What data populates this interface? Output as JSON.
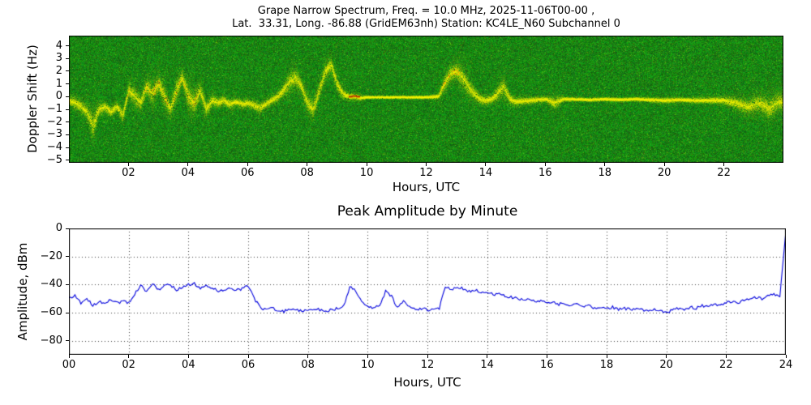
{
  "title": {
    "line1": "Grape Narrow Spectrum, Freq. = 10.0 MHz, 2025-11-06T00-00 ,",
    "line2": "Lat.  33.31, Long. -86.88 (GridEM63nh) Station: KC4LE_N60 Subchannel 0"
  },
  "colors": {
    "spectrogram_background": "#0c6e10",
    "trace_yellow": "#ffee00",
    "trace_orange": "#ff9000",
    "trace_red": "#d03010",
    "amplitude_line": "#0000dd"
  },
  "chart_data": [
    {
      "type": "heatmap",
      "title": "",
      "ylabel": "Doppler Shift (Hz)",
      "xlabel": "Hours, UTC",
      "xlim": [
        0,
        24
      ],
      "ylim": [
        -5.2,
        4.8
      ],
      "xticks": [
        2,
        4,
        6,
        8,
        10,
        12,
        14,
        16,
        18,
        20,
        22
      ],
      "xtick_labels": [
        "02",
        "04",
        "06",
        "08",
        "10",
        "12",
        "14",
        "16",
        "18",
        "20",
        "22"
      ],
      "yticks": [
        4,
        3,
        2,
        1,
        0,
        -1,
        -2,
        -3,
        -4,
        -5
      ],
      "ytick_labels": [
        "4",
        "3",
        "2",
        "1",
        "0",
        "−1",
        "−2",
        "−3",
        "−4",
        "−5"
      ],
      "grid": false,
      "legend": false,
      "trace_units": "hour, center_hz, spread_hz, intensity",
      "trace": [
        [
          0.0,
          -0.3,
          0.6,
          0.9
        ],
        [
          0.2,
          -0.5,
          0.8,
          0.9
        ],
        [
          0.4,
          -0.8,
          0.8,
          0.8
        ],
        [
          0.6,
          -1.2,
          1.0,
          0.8
        ],
        [
          0.8,
          -2.3,
          2.0,
          0.9
        ],
        [
          1.0,
          -1.0,
          0.8,
          0.8
        ],
        [
          1.2,
          -0.8,
          0.6,
          0.8
        ],
        [
          1.4,
          -1.2,
          0.7,
          0.8
        ],
        [
          1.6,
          -0.8,
          0.6,
          0.8
        ],
        [
          1.8,
          -1.5,
          0.9,
          0.8
        ],
        [
          2.0,
          0.5,
          1.0,
          1.0
        ],
        [
          2.2,
          0.0,
          1.2,
          0.9
        ],
        [
          2.4,
          -0.5,
          1.0,
          0.9
        ],
        [
          2.6,
          0.8,
          1.2,
          1.0
        ],
        [
          2.8,
          0.2,
          1.5,
          1.0
        ],
        [
          3.0,
          1.0,
          1.2,
          1.0
        ],
        [
          3.2,
          0.0,
          1.5,
          1.0
        ],
        [
          3.4,
          -1.0,
          1.0,
          0.9
        ],
        [
          3.6,
          0.5,
          1.5,
          1.0
        ],
        [
          3.8,
          1.5,
          1.0,
          1.0
        ],
        [
          4.0,
          0.0,
          1.8,
          1.0
        ],
        [
          4.2,
          -0.5,
          1.5,
          1.0
        ],
        [
          4.4,
          0.5,
          1.2,
          0.9
        ],
        [
          4.6,
          -1.0,
          1.0,
          0.9
        ],
        [
          4.8,
          -0.3,
          0.8,
          0.8
        ],
        [
          5.0,
          -0.5,
          0.6,
          0.8
        ],
        [
          5.2,
          -0.3,
          0.6,
          0.8
        ],
        [
          5.4,
          -0.6,
          0.6,
          0.8
        ],
        [
          5.6,
          -0.4,
          0.5,
          0.8
        ],
        [
          5.8,
          -0.6,
          0.5,
          0.7
        ],
        [
          6.0,
          -0.5,
          0.5,
          0.7
        ],
        [
          6.2,
          -0.7,
          0.6,
          0.6
        ],
        [
          6.4,
          -0.9,
          0.7,
          0.6
        ],
        [
          6.6,
          -0.6,
          0.5,
          0.6
        ],
        [
          6.8,
          -0.3,
          0.5,
          0.7
        ],
        [
          7.0,
          0.0,
          0.6,
          0.7
        ],
        [
          7.2,
          0.5,
          0.9,
          0.8
        ],
        [
          7.4,
          1.2,
          1.2,
          0.8
        ],
        [
          7.6,
          1.5,
          1.3,
          0.8
        ],
        [
          7.8,
          0.8,
          1.0,
          0.8
        ],
        [
          8.0,
          -0.5,
          1.2,
          0.8
        ],
        [
          8.2,
          -1.0,
          1.3,
          0.8
        ],
        [
          8.4,
          0.5,
          1.0,
          0.8
        ],
        [
          8.6,
          2.0,
          1.2,
          0.9
        ],
        [
          8.8,
          2.5,
          1.0,
          0.9
        ],
        [
          9.0,
          1.0,
          1.0,
          0.8
        ],
        [
          9.2,
          0.2,
          0.6,
          0.8
        ],
        [
          9.4,
          0.0,
          0.4,
          0.9
        ],
        [
          9.6,
          0.0,
          0.4,
          0.9
        ],
        [
          9.8,
          -0.1,
          0.3,
          0.9
        ],
        [
          10.0,
          -0.05,
          0.15,
          0.9
        ],
        [
          10.5,
          -0.05,
          0.15,
          0.9
        ],
        [
          11.0,
          -0.05,
          0.15,
          0.9
        ],
        [
          11.5,
          -0.05,
          0.15,
          0.9
        ],
        [
          12.0,
          -0.05,
          0.15,
          0.9
        ],
        [
          12.4,
          0.0,
          0.3,
          0.9
        ],
        [
          12.6,
          1.0,
          1.0,
          1.0
        ],
        [
          12.8,
          1.8,
          1.1,
          1.0
        ],
        [
          13.0,
          2.0,
          1.2,
          1.0
        ],
        [
          13.2,
          1.5,
          1.4,
          0.9
        ],
        [
          13.4,
          0.8,
          1.2,
          0.8
        ],
        [
          13.6,
          0.2,
          0.8,
          0.8
        ],
        [
          13.8,
          -0.2,
          0.6,
          0.8
        ],
        [
          14.0,
          -0.3,
          0.6,
          0.8
        ],
        [
          14.2,
          -0.2,
          0.5,
          0.8
        ],
        [
          14.4,
          0.3,
          1.0,
          0.8
        ],
        [
          14.6,
          0.8,
          1.2,
          0.8
        ],
        [
          14.8,
          -0.2,
          0.6,
          0.8
        ],
        [
          15.0,
          -0.4,
          0.5,
          0.7
        ],
        [
          15.5,
          -0.3,
          0.4,
          0.7
        ],
        [
          16.0,
          -0.2,
          0.3,
          0.8
        ],
        [
          16.3,
          -0.5,
          0.8,
          0.6
        ],
        [
          16.6,
          -0.2,
          0.25,
          0.8
        ],
        [
          17.0,
          -0.2,
          0.2,
          0.8
        ],
        [
          17.5,
          -0.25,
          0.2,
          0.8
        ],
        [
          18.0,
          -0.2,
          0.2,
          0.8
        ],
        [
          18.5,
          -0.25,
          0.2,
          0.8
        ],
        [
          19.0,
          -0.2,
          0.2,
          0.8
        ],
        [
          19.5,
          -0.25,
          0.25,
          0.8
        ],
        [
          20.0,
          -0.3,
          0.3,
          0.8
        ],
        [
          20.5,
          -0.25,
          0.25,
          0.8
        ],
        [
          21.0,
          -0.3,
          0.3,
          0.8
        ],
        [
          21.5,
          -0.3,
          0.35,
          0.8
        ],
        [
          22.0,
          -0.3,
          0.5,
          0.8
        ],
        [
          22.4,
          -0.5,
          0.8,
          0.8
        ],
        [
          22.8,
          -0.8,
          1.0,
          0.8
        ],
        [
          23.2,
          -0.5,
          1.2,
          0.8
        ],
        [
          23.5,
          -1.0,
          1.5,
          0.9
        ],
        [
          23.8,
          -0.4,
          1.2,
          0.9
        ],
        [
          24.0,
          -0.5,
          1.5,
          0.9
        ]
      ],
      "hot_marks": [
        [
          9.45,
          0.0
        ],
        [
          9.58,
          0.05
        ],
        [
          9.7,
          0.0
        ]
      ]
    },
    {
      "type": "line",
      "title": "Peak Amplitude by Minute",
      "ylabel": "Amplitude, dBm",
      "xlabel": "Hours, UTC",
      "xlim": [
        0,
        24
      ],
      "ylim": [
        -90,
        0
      ],
      "xticks": [
        0,
        2,
        4,
        6,
        8,
        10,
        12,
        14,
        16,
        18,
        20,
        22,
        24
      ],
      "xtick_labels": [
        "00",
        "02",
        "04",
        "06",
        "08",
        "10",
        "12",
        "14",
        "16",
        "18",
        "20",
        "22",
        "24"
      ],
      "yticks": [
        0,
        -20,
        -40,
        -60,
        -80
      ],
      "ytick_labels": [
        "0",
        "−20",
        "−40",
        "−60",
        "−80"
      ],
      "grid": "dotted",
      "legend": false,
      "x_step_hours": 0.2,
      "values_dbm": [
        -50,
        -48,
        -53,
        -50,
        -55,
        -52,
        -54,
        -50,
        -53,
        -52,
        -53,
        -47,
        -40,
        -45,
        -39,
        -44,
        -41,
        -40,
        -44,
        -42,
        -40,
        -39,
        -43,
        -41,
        -42,
        -45,
        -44,
        -42,
        -44,
        -43,
        -41,
        -50,
        -56,
        -58,
        -57,
        -58,
        -59,
        -57,
        -58,
        -59,
        -58,
        -57,
        -58,
        -59,
        -58,
        -57,
        -55,
        -42,
        -44,
        -53,
        -56,
        -57,
        -55,
        -45,
        -48,
        -57,
        -52,
        -56,
        -58,
        -57,
        -58,
        -58,
        -57,
        -41,
        -44,
        -42,
        -43,
        -45,
        -44,
        -46,
        -45,
        -47,
        -46,
        -48,
        -49,
        -50,
        -51,
        -50,
        -52,
        -51,
        -53,
        -52,
        -54,
        -53,
        -55,
        -54,
        -56,
        -55,
        -57,
        -56,
        -57,
        -56,
        -58,
        -57,
        -58,
        -57,
        -58,
        -59,
        -58,
        -59,
        -60,
        -58,
        -57,
        -58,
        -56,
        -57,
        -55,
        -56,
        -54,
        -55,
        -53,
        -52,
        -53,
        -51,
        -50,
        -49,
        -50,
        -48,
        -47,
        -48,
        -2
      ]
    }
  ]
}
